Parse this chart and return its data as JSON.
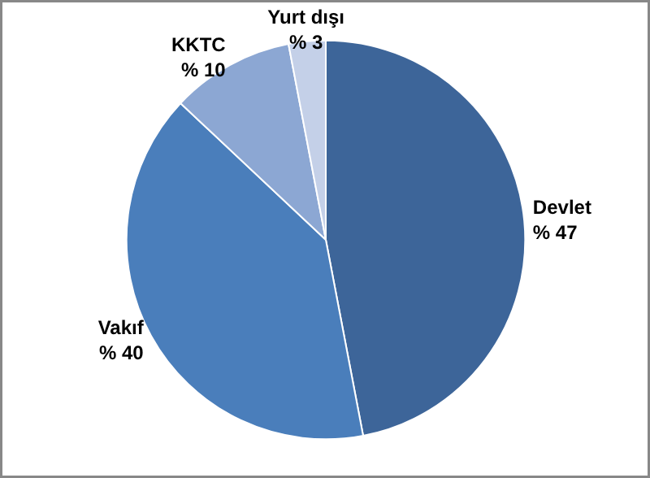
{
  "chart_data": {
    "type": "pie",
    "categories": [
      "Devlet",
      "Vakıf",
      "KKTC",
      "Yurt dışı"
    ],
    "values": [
      47,
      40,
      10,
      3
    ],
    "colors": [
      "#3d6599",
      "#4a7ebb",
      "#8ca7d3",
      "#c4d0e8"
    ],
    "value_labels": [
      "% 47",
      "% 40",
      "% 10",
      "% 3"
    ]
  }
}
